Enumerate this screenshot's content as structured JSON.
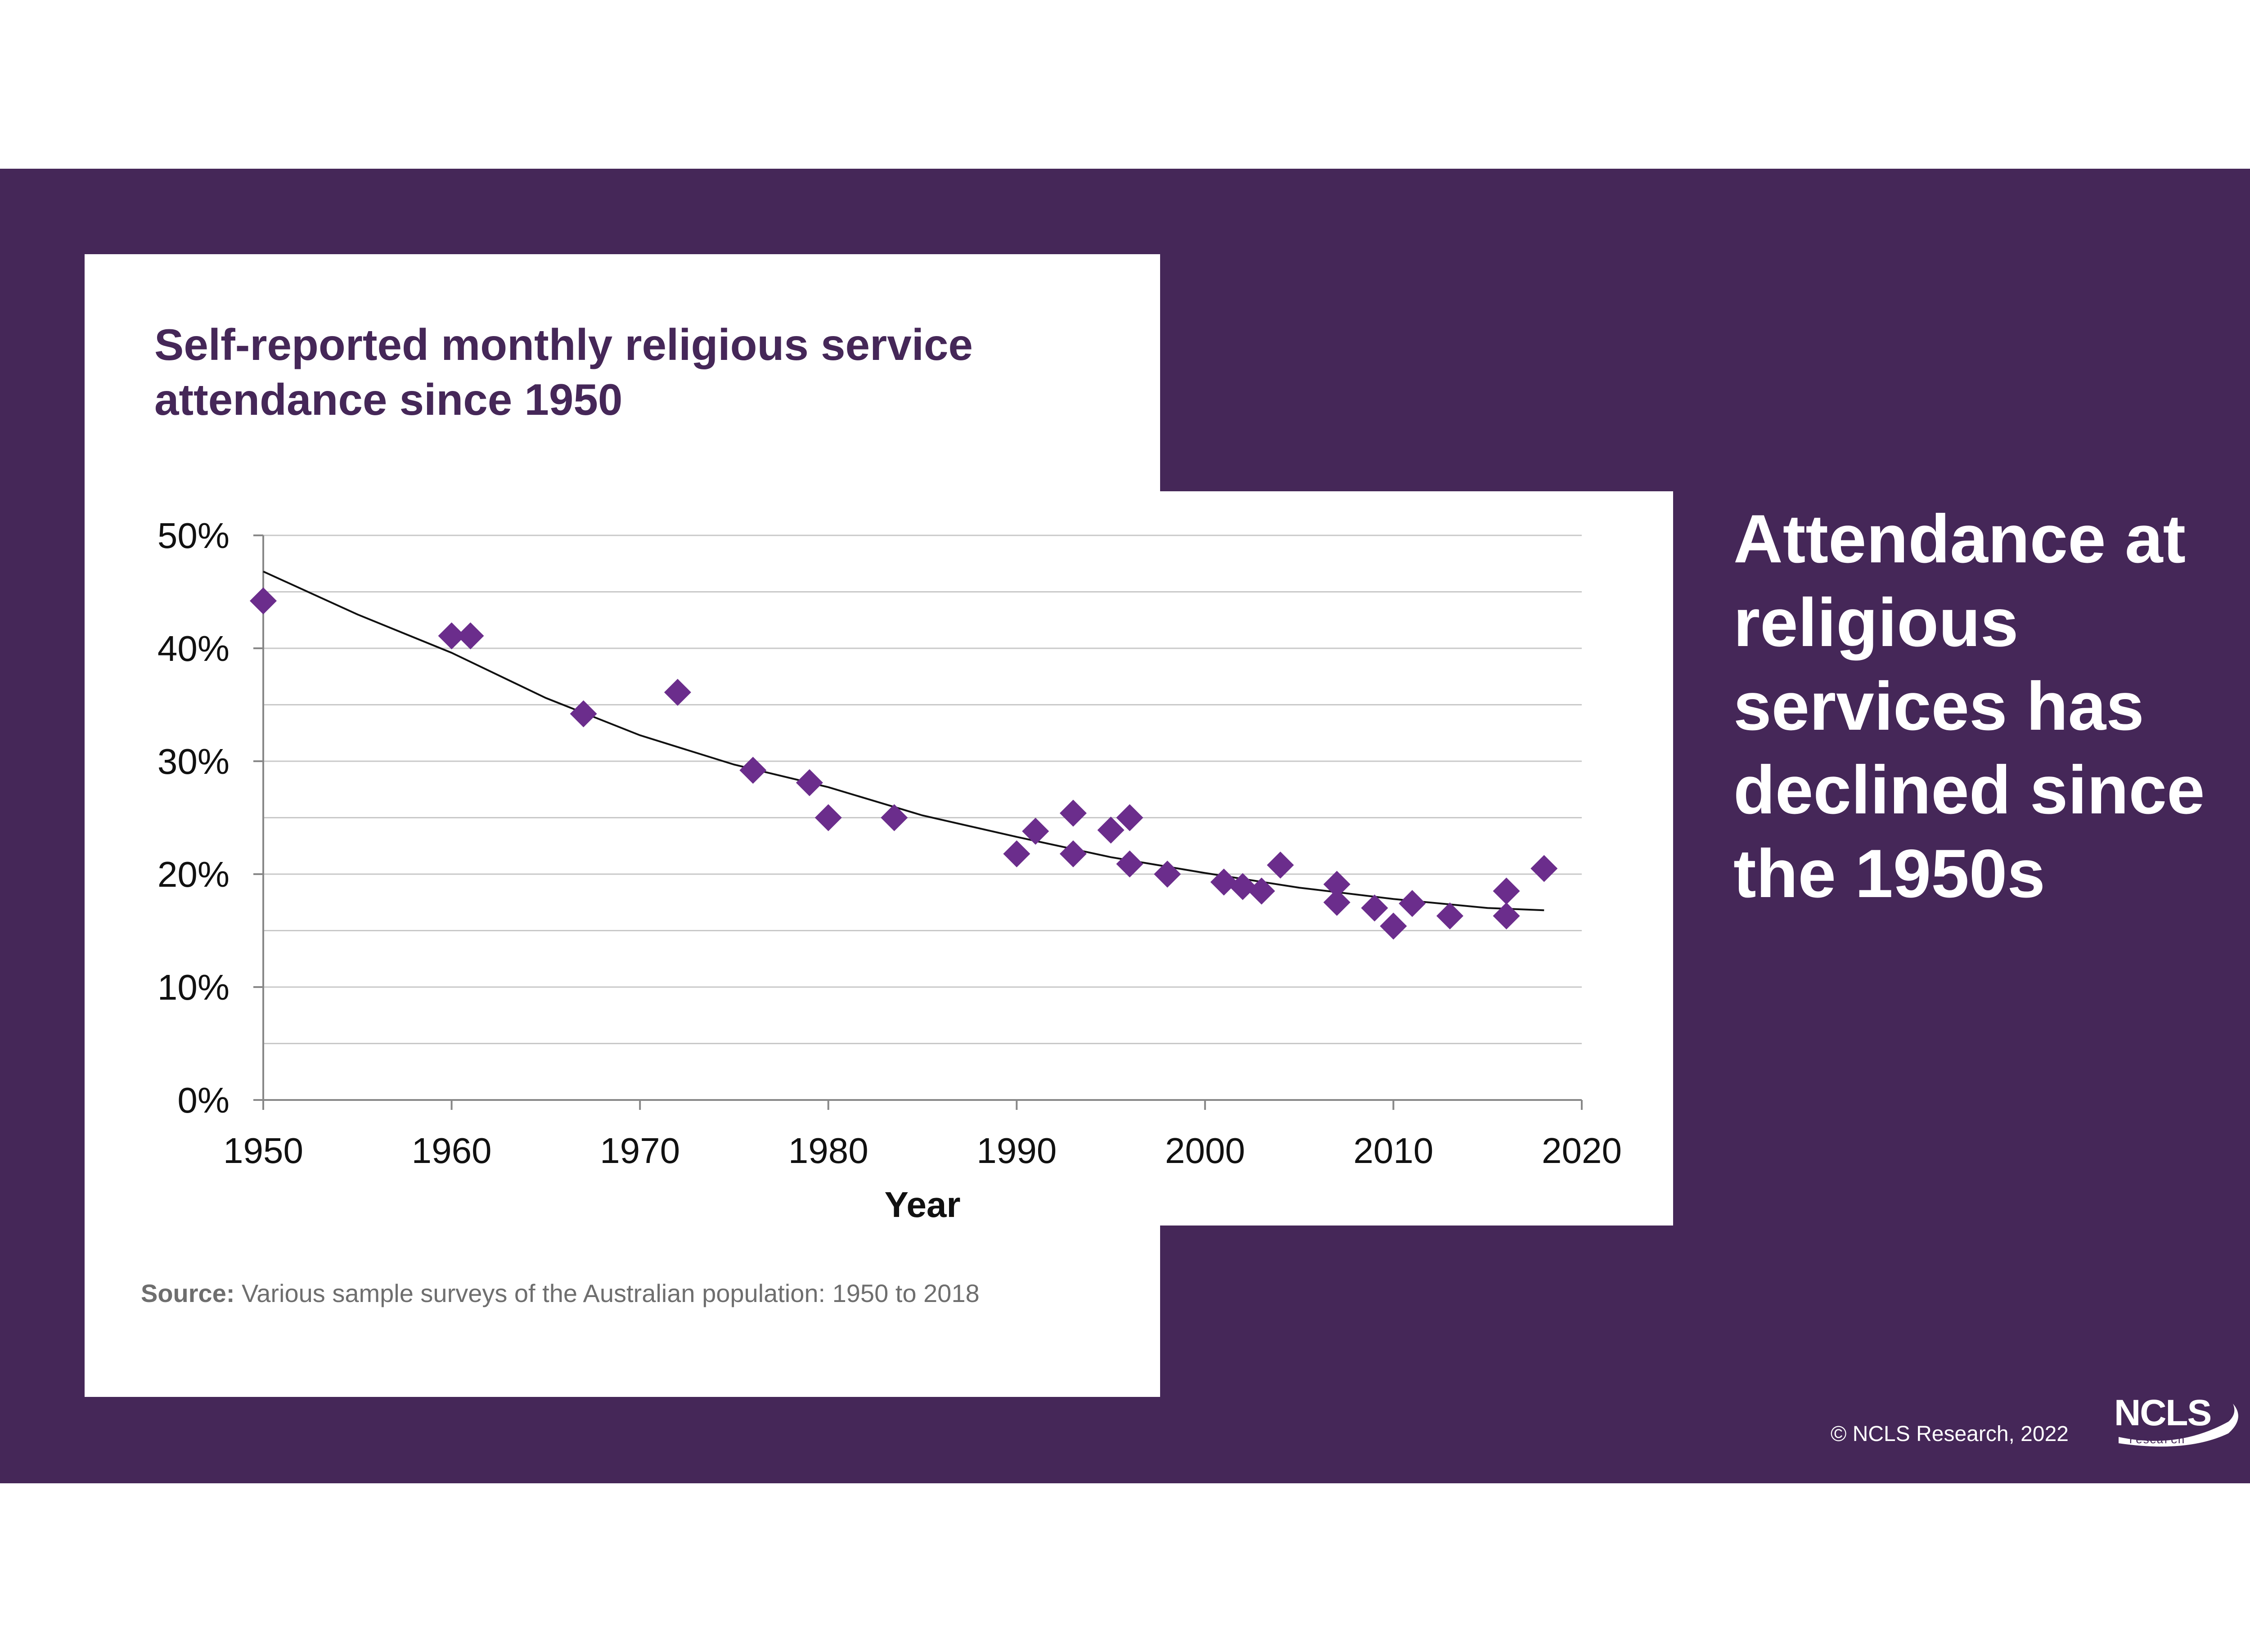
{
  "headline": "Attendance at religious services has declined since the 1950s",
  "copyright": "© NCLS Research, 2022",
  "logo": {
    "main": "NCLS",
    "sub": "research"
  },
  "source": {
    "label": "Source:",
    "text": " Various sample surveys of the Australian population: 1950 to 2018"
  },
  "colors": {
    "band": "#452758",
    "marker": "#6b2d8c",
    "trend": "#111111",
    "grid": "#c8c8c8"
  },
  "chart_data": {
    "type": "scatter",
    "title": "Self-reported monthly religious service attendance since 1950",
    "xlabel": "Year",
    "ylabel": "",
    "xlim": [
      1950,
      2020
    ],
    "ylim": [
      0,
      50
    ],
    "x_ticks": [
      "1950",
      "1960",
      "1970",
      "1980",
      "1990",
      "2000",
      "2010",
      "2020"
    ],
    "y_ticks": [
      "0%",
      "10%",
      "20%",
      "30%",
      "40%",
      "50%"
    ],
    "grid": true,
    "points": [
      {
        "x": 1950,
        "y": 44.2
      },
      {
        "x": 1960,
        "y": 41.1
      },
      {
        "x": 1961,
        "y": 41.1
      },
      {
        "x": 1967,
        "y": 34.2
      },
      {
        "x": 1972,
        "y": 36.1
      },
      {
        "x": 1976,
        "y": 29.2
      },
      {
        "x": 1979,
        "y": 28.1
      },
      {
        "x": 1980,
        "y": 25.0
      },
      {
        "x": 1983.5,
        "y": 25.0
      },
      {
        "x": 1990,
        "y": 21.8
      },
      {
        "x": 1991,
        "y": 23.8
      },
      {
        "x": 1993,
        "y": 25.4
      },
      {
        "x": 1993,
        "y": 21.8
      },
      {
        "x": 1995,
        "y": 23.9
      },
      {
        "x": 1996,
        "y": 25.0
      },
      {
        "x": 1996,
        "y": 20.9
      },
      {
        "x": 1998,
        "y": 20.0
      },
      {
        "x": 2001,
        "y": 19.3
      },
      {
        "x": 2002,
        "y": 18.9
      },
      {
        "x": 2003,
        "y": 18.5
      },
      {
        "x": 2004,
        "y": 20.8
      },
      {
        "x": 2007,
        "y": 19.1
      },
      {
        "x": 2007,
        "y": 17.5
      },
      {
        "x": 2009,
        "y": 17.0
      },
      {
        "x": 2010,
        "y": 15.4
      },
      {
        "x": 2011,
        "y": 17.4
      },
      {
        "x": 2013,
        "y": 16.3
      },
      {
        "x": 2016,
        "y": 18.5
      },
      {
        "x": 2016,
        "y": 16.3
      },
      {
        "x": 2018,
        "y": 20.5
      }
    ],
    "trendline": {
      "x": [
        1950,
        1955,
        1960,
        1965,
        1970,
        1975,
        1980,
        1985,
        1990,
        1995,
        2000,
        2005,
        2010,
        2015,
        2018
      ],
      "y": [
        46.8,
        43.0,
        39.6,
        35.6,
        32.3,
        29.7,
        27.7,
        25.2,
        23.3,
        21.5,
        20.1,
        18.8,
        17.8,
        17.0,
        16.8
      ]
    }
  }
}
